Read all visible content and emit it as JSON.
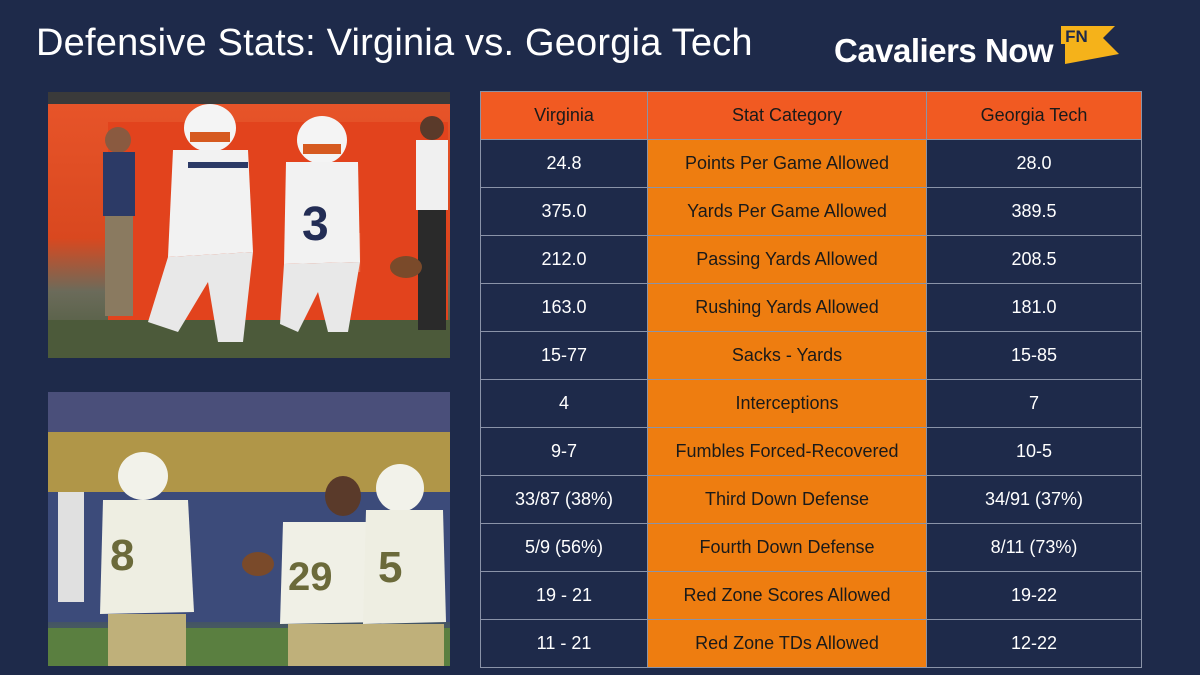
{
  "header": {
    "title": "Defensive Stats: Virginia vs. Georgia Tech",
    "brand_name": "Cavaliers Now",
    "brand_badge": "FN",
    "colors": {
      "background": "#1e2a4a",
      "header_row": "#f15a22",
      "category_column": "#ee7d10",
      "badge": "#f5b21a"
    }
  },
  "table": {
    "columns": [
      "Virginia",
      "Stat Category",
      "Georgia Tech"
    ],
    "rows": [
      {
        "virginia": "24.8",
        "category": "Points Per Game Allowed",
        "georgia_tech": "28.0"
      },
      {
        "virginia": "375.0",
        "category": "Yards Per Game Allowed",
        "georgia_tech": "389.5"
      },
      {
        "virginia": "212.0",
        "category": "Passing Yards Allowed",
        "georgia_tech": "208.5"
      },
      {
        "virginia": "163.0",
        "category": "Rushing Yards Allowed",
        "georgia_tech": "181.0"
      },
      {
        "virginia": "15-77",
        "category": "Sacks - Yards",
        "georgia_tech": "15-85"
      },
      {
        "virginia": "4",
        "category": "Interceptions",
        "georgia_tech": "7"
      },
      {
        "virginia": "9-7",
        "category": "Fumbles Forced-Recovered",
        "georgia_tech": "10-5"
      },
      {
        "virginia": "33/87 (38%)",
        "category": "Third Down Defense",
        "georgia_tech": "34/91 (37%)"
      },
      {
        "virginia": "5/9 (56%)",
        "category": "Fourth Down Defense",
        "georgia_tech": "8/11 (73%)"
      },
      {
        "virginia": "19 - 21",
        "category": "Red Zone Scores Allowed",
        "georgia_tech": "19-22"
      },
      {
        "virginia": "11 - 21",
        "category": "Red Zone TDs Allowed",
        "georgia_tech": "12-22"
      }
    ]
  },
  "photos": {
    "virginia_jersey_numbers": [
      "3"
    ],
    "georgia_tech_jersey_numbers": [
      "8",
      "29",
      "5"
    ]
  }
}
